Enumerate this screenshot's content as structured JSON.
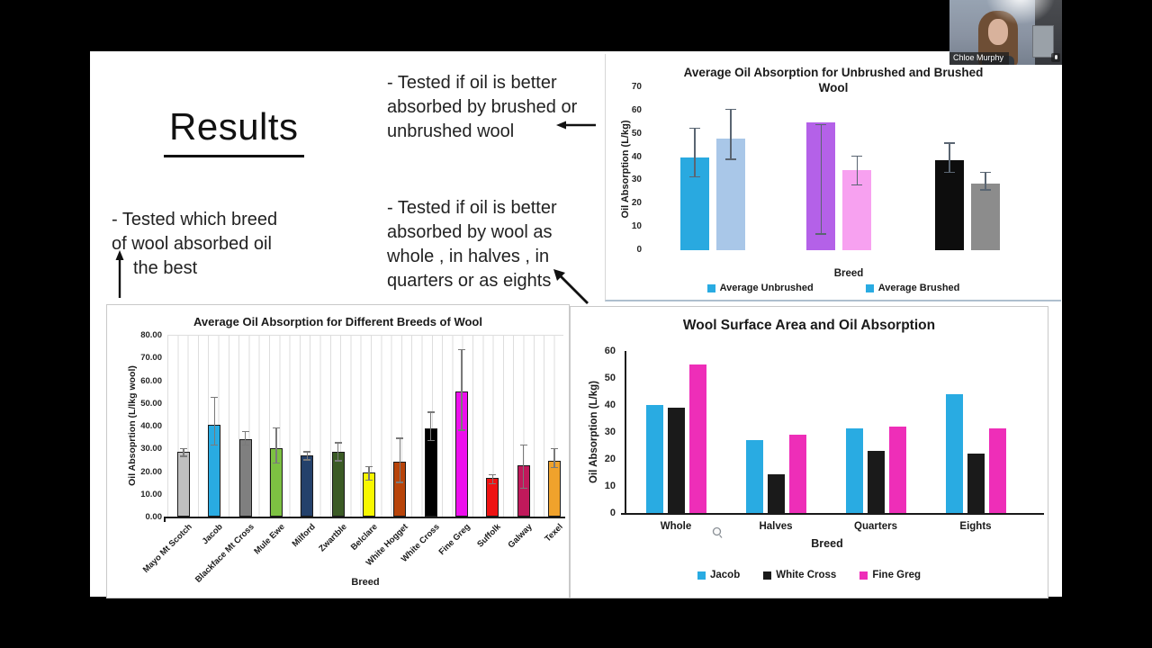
{
  "window": {
    "background_color": "#000000"
  },
  "webcam": {
    "participant_name": "Chloe Murphy"
  },
  "slide": {
    "title": "Results",
    "annotations": {
      "brushed": {
        "lines": [
          "- Tested if oil is better",
          "absorbed by brushed or",
          "unbrushed wool"
        ]
      },
      "breed": {
        "lines": [
          "- Tested which breed",
          "of wool absorbed oil",
          "the best"
        ]
      },
      "surface": {
        "lines": [
          "- Tested if oil is better",
          "absorbed by wool as",
          "whole , in halves , in",
          "quarters or as eights"
        ]
      }
    }
  },
  "chart_data": [
    {
      "id": "unbrushed-vs-brushed",
      "type": "bar",
      "title": "Average Oil Absorption for Unbrushed and Brushed Wool",
      "title_lines": [
        "Average Oil Absorption for Unbrushed and Brushed",
        "Wool"
      ],
      "xlabel": "Breed",
      "ylabel": "Oil Absorption (L/kg)",
      "ylim": [
        0,
        70
      ],
      "yticks": [
        0,
        10,
        20,
        30,
        40,
        50,
        60,
        70
      ],
      "grid": false,
      "legend_position": "bottom",
      "legend": [
        {
          "label": "Average Unbrushed",
          "marker_color": "#29ABE2"
        },
        {
          "label": "Average Brushed",
          "marker_color": "#29ABE2"
        }
      ],
      "pairs": [
        {
          "unbrushed": {
            "value": 40,
            "err_low": 31.5,
            "err_high": 52.5,
            "color": "#29A9E0"
          },
          "brushed": {
            "value": 48,
            "err_low": 39,
            "err_high": 60.5,
            "color": "#A9C7E8"
          }
        },
        {
          "unbrushed": {
            "value": 55,
            "err_low": 7,
            "err_high": 54,
            "color": "#B461E8"
          },
          "brushed": {
            "value": 34.5,
            "err_low": 28,
            "err_high": 40.5,
            "color": "#F7A1F0"
          }
        },
        {
          "unbrushed": {
            "value": 38.5,
            "err_low": 33.5,
            "err_high": 46,
            "color": "#0D0D0D"
          },
          "brushed": {
            "value": 28.5,
            "err_low": 26,
            "err_high": 33.5,
            "color": "#8C8C8C"
          }
        }
      ]
    },
    {
      "id": "breeds",
      "type": "bar",
      "title": "Average Oil Absorption for Different Breeds of Wool",
      "xlabel": "Breed",
      "ylabel": "Oil Absoprtion (L/lkg wool)",
      "ylim": [
        0,
        80
      ],
      "ytick_labels": [
        "0.00",
        "10.00",
        "20.00",
        "30.00",
        "40.00",
        "50.00",
        "60.00",
        "70.00",
        "80.00"
      ],
      "grid": "vertical",
      "categories": [
        "Mayo Mt Scotch",
        "Jacob",
        "Blackface Mt Cross",
        "Mule Ewe",
        "Milford",
        "Zwartble",
        "Belclare",
        "White Hogget",
        "White Cross",
        "Fine Greg",
        "Suffolk",
        "Galway",
        "Texel"
      ],
      "values": [
        28.5,
        40.5,
        34,
        30,
        27,
        28.5,
        19.5,
        24,
        39,
        55,
        17,
        22.5,
        24.5
      ],
      "err_low": [
        26.5,
        31.5,
        31.5,
        23.5,
        25,
        24.5,
        16,
        15,
        33.5,
        38,
        14.5,
        12.5,
        21.5
      ],
      "err_high": [
        30,
        52.5,
        37.5,
        39,
        28.5,
        32.5,
        22,
        34.5,
        46,
        73.5,
        18.5,
        31.5,
        30
      ],
      "colors": [
        "#BFBFBF",
        "#29ABE2",
        "#7F7F7F",
        "#7DC142",
        "#24416B",
        "#3B5B25",
        "#F8F800",
        "#B74309",
        "#000000",
        "#ED0FED",
        "#EE1212",
        "#C0195B",
        "#F0A22C"
      ]
    },
    {
      "id": "surface-area",
      "type": "bar",
      "title": "Wool Surface Area and Oil Absorption",
      "xlabel": "Breed",
      "ylabel": "Oil Absorption (L/kg)",
      "ylim": [
        0,
        60
      ],
      "yticks": [
        0,
        10,
        20,
        30,
        40,
        50,
        60
      ],
      "grid": false,
      "legend_position": "bottom",
      "categories": [
        "Whole",
        "Halves",
        "Quarters",
        "Eights"
      ],
      "series": [
        {
          "name": "Jacob",
          "color": "#29ABE2",
          "values": [
            40,
            27,
            31.5,
            44
          ]
        },
        {
          "name": "White Cross",
          "color": "#1A1A1A",
          "values": [
            39,
            14.5,
            23,
            22
          ]
        },
        {
          "name": "Fine Greg",
          "color": "#EE2EB8",
          "values": [
            55,
            29,
            32,
            31.5
          ]
        }
      ]
    }
  ]
}
